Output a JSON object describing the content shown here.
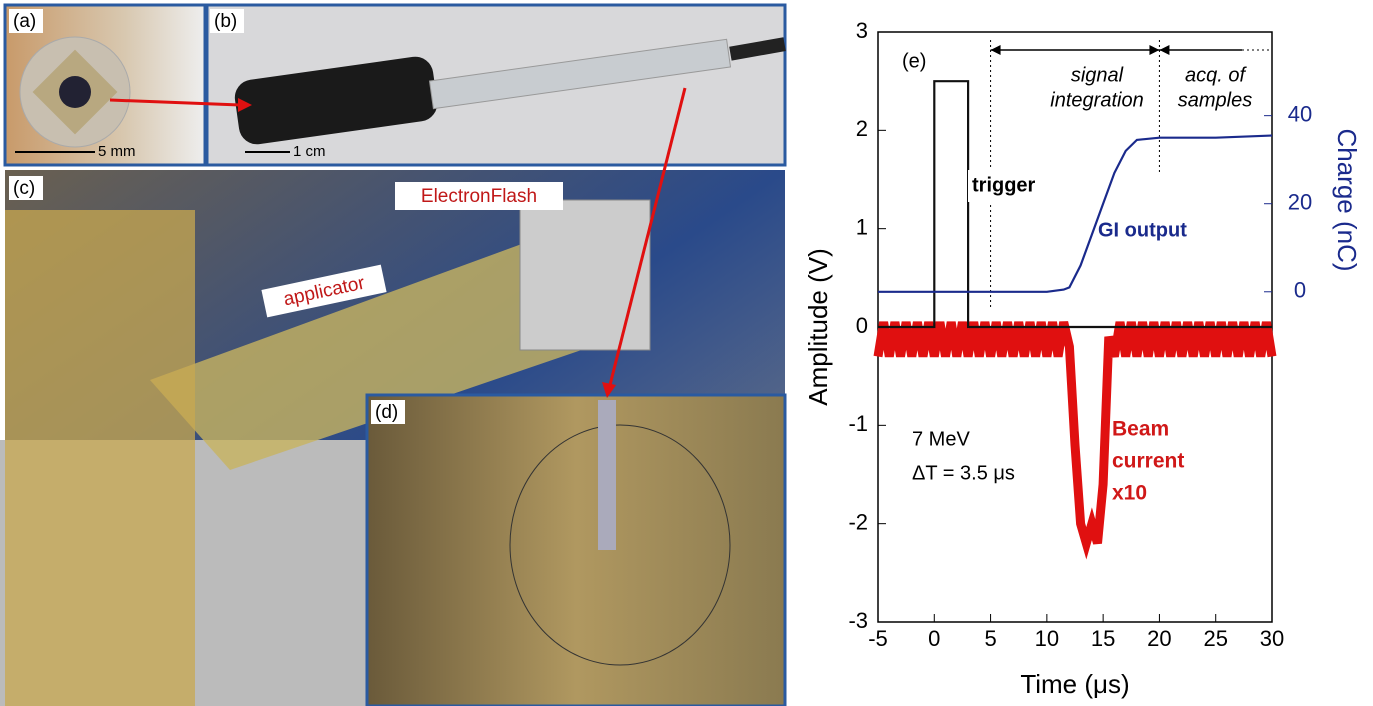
{
  "panels": {
    "a": {
      "label": "(a)",
      "scale": "5 mm"
    },
    "b": {
      "label": "(b)",
      "scale": "1 cm"
    },
    "c": {
      "label": "(c)",
      "machine": "ElectronFlash",
      "applicator": "applicator"
    },
    "d": {
      "label": "(d)"
    }
  },
  "chart_data": {
    "type": "line",
    "panel_label": "(e)",
    "xlabel": "Time (μs)",
    "ylabel": "Amplitude (V)",
    "y2label": "Charge (nC)",
    "xlim": [
      -5,
      30
    ],
    "xticks": [
      -5,
      0,
      5,
      10,
      15,
      20,
      25,
      30
    ],
    "ylim": [
      -3,
      3
    ],
    "yticks": [
      -3,
      -2,
      -1,
      0,
      1,
      2,
      3
    ],
    "y2lim": [
      -75,
      59
    ],
    "y2ticks": [
      0,
      20,
      40
    ],
    "annotations": {
      "integration": [
        "signal",
        "integration"
      ],
      "acquisition": [
        "acq. of",
        "samples"
      ],
      "trigger": "trigger",
      "gi": "GI output",
      "beam": [
        "Beam",
        "current",
        "x10"
      ],
      "energy": "7 MeV",
      "dt": "ΔT = 3.5 μs"
    },
    "markers": [
      5,
      20
    ],
    "series": [
      {
        "color": "#e01010",
        "x": [
          -5,
          -4.5,
          -4,
          -3.5,
          -3,
          -2.5,
          -2,
          -1.5,
          -1,
          -0.5,
          0,
          0.5,
          1,
          1.5,
          2,
          2.5,
          3,
          3.5,
          4,
          4.5,
          5,
          5.5,
          6,
          6.5,
          7,
          7.5,
          8,
          8.5,
          9,
          9.5,
          10,
          10.5,
          11,
          11.5,
          12,
          12.5,
          13,
          13.5,
          14,
          14.5,
          15,
          15.5,
          16,
          16.5,
          17,
          17.5,
          18,
          18.5,
          19,
          19.5,
          20,
          20.5,
          21,
          21.5,
          22,
          22.5,
          23,
          23.5,
          24,
          24.5,
          25,
          25.5,
          26,
          26.5,
          27,
          27.5,
          28,
          28.5,
          29,
          29.5,
          30
        ],
        "values": [
          -0.3,
          0.05,
          -0.3,
          0.05,
          -0.3,
          0.05,
          -0.3,
          0.05,
          -0.3,
          0.05,
          -0.3,
          0.05,
          -0.3,
          0.05,
          -0.3,
          0.05,
          -0.3,
          0.05,
          -0.3,
          0.05,
          -0.3,
          0.05,
          -0.3,
          0.05,
          -0.3,
          0.05,
          -0.3,
          0.05,
          -0.3,
          0.05,
          -0.3,
          0.05,
          -0.3,
          0.05,
          -0.2,
          -1.2,
          -2.0,
          -2.2,
          -2.0,
          -2.2,
          -1.6,
          -0.1,
          -0.3,
          0.05,
          -0.3,
          0.05,
          -0.3,
          0.05,
          -0.3,
          0.05,
          -0.3,
          0.05,
          -0.3,
          0.05,
          -0.3,
          0.05,
          -0.3,
          0.05,
          -0.3,
          0.05,
          -0.3,
          0.05,
          -0.3,
          0.05,
          -0.3,
          0.05,
          -0.3,
          0.05,
          -0.3,
          0.05,
          -0.3
        ]
      },
      {
        "color": "#111111",
        "x": [
          -5,
          0,
          0,
          3,
          3,
          30
        ],
        "values": [
          0,
          0,
          2.5,
          2.5,
          0,
          0
        ]
      },
      {
        "color": "#1a2a8c",
        "axis": "y2",
        "x": [
          -5,
          0,
          5,
          10,
          11.5,
          12,
          13,
          14,
          15,
          16,
          17,
          18,
          20,
          25,
          30
        ],
        "values": [
          0,
          0,
          0,
          0,
          0.5,
          1,
          6,
          13,
          20,
          27,
          32,
          34.5,
          35,
          35,
          35.5
        ]
      }
    ]
  }
}
